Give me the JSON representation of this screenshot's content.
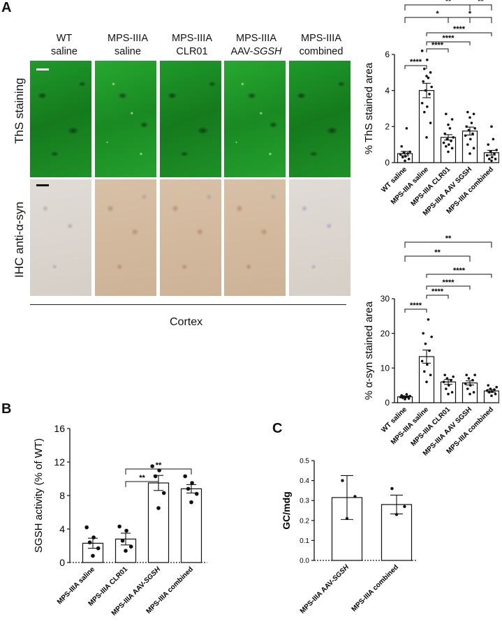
{
  "panel_a": {
    "letter": "A",
    "columns": [
      {
        "line1": "WT",
        "line2": "saline"
      },
      {
        "line1": "MPS-IIIA",
        "line2": "saline"
      },
      {
        "line1": "MPS-IIIA",
        "line2": "CLR01"
      },
      {
        "line1": "MPS-IIIA",
        "line2_prefix": "AAV-",
        "line2_italic": "SGSH"
      },
      {
        "line1": "MPS-IIIA",
        "line2": "combined"
      }
    ],
    "row_labels": [
      "ThS staining",
      "IHC anti-α-syn"
    ],
    "region_label": "Cortex"
  },
  "panel_b": {
    "letter": "B"
  },
  "panel_c": {
    "letter": "C"
  },
  "chart_data": [
    {
      "id": "ths",
      "type": "bar",
      "ylabel": "% ThS stained area",
      "ylim": [
        0,
        6
      ],
      "yticks": [
        0,
        2,
        4,
        6
      ],
      "categories": [
        "WT saline",
        "MPS-IIIA saline",
        "MPS-IIIA CLR01",
        "MPS-IIIA AAV SGSH",
        "MPS-IIIA combined"
      ],
      "values": [
        0.5,
        4.0,
        1.4,
        1.75,
        0.55
      ],
      "sem": [
        0.12,
        0.4,
        0.15,
        0.22,
        0.13
      ],
      "points": [
        [
          0.1,
          0.2,
          0.3,
          0.35,
          0.45,
          0.5,
          0.55,
          0.6,
          0.9,
          1.9
        ],
        [
          1.4,
          2.2,
          2.8,
          3.1,
          3.3,
          3.8,
          4.0,
          4.2,
          4.5,
          4.7,
          4.8,
          5.0,
          5.2,
          5.7,
          6.2
        ],
        [
          0.6,
          0.8,
          0.9,
          1.0,
          1.1,
          1.2,
          1.3,
          1.4,
          1.6,
          1.9,
          2.1,
          2.4,
          2.7
        ],
        [
          0.5,
          0.8,
          1.0,
          1.3,
          1.5,
          1.6,
          1.8,
          1.9,
          2.0,
          2.2,
          2.5,
          2.7,
          2.8
        ],
        [
          0.1,
          0.2,
          0.2,
          0.3,
          0.4,
          0.5,
          0.6,
          0.7,
          1.0,
          1.3,
          2.0
        ]
      ],
      "significance": [
        {
          "from": 0,
          "to": 1,
          "label": "****"
        },
        {
          "from": 1,
          "to": 2,
          "label": "****"
        },
        {
          "from": 1,
          "to": 3,
          "label": "****"
        },
        {
          "from": 1,
          "to": 4,
          "label": "****"
        },
        {
          "from": 0,
          "to": 3,
          "label": "*"
        },
        {
          "from": 2,
          "to": 4,
          "label": "*"
        },
        {
          "from": 0,
          "to": 4,
          "label": "**"
        },
        {
          "from": 3,
          "to": 4,
          "label": "**"
        }
      ]
    },
    {
      "id": "asyn",
      "type": "bar",
      "ylabel": "% α-syn stained area",
      "ylim": [
        0,
        30
      ],
      "yticks": [
        0,
        10,
        20,
        30
      ],
      "categories": [
        "WT saline",
        "MPS-IIIA saline",
        "MPS-IIIA CLR01",
        "MPS-IIIA AAV SGSH",
        "MPS-IIIA combined"
      ],
      "values": [
        1.7,
        13.3,
        6.0,
        5.7,
        3.4
      ],
      "sem": [
        0.2,
        1.9,
        0.7,
        0.6,
        0.4
      ],
      "points": [
        [
          1.0,
          1.2,
          1.4,
          1.5,
          1.6,
          1.7,
          1.8,
          1.9,
          2.1,
          2.4
        ],
        [
          6.0,
          8.0,
          9.0,
          11.0,
          12.0,
          15.0,
          17.0,
          19.0,
          20.0,
          24.0
        ],
        [
          2.5,
          3.0,
          4.0,
          5.0,
          6.0,
          6.5,
          7.0,
          7.5,
          8.0
        ],
        [
          2.5,
          3.0,
          4.0,
          5.0,
          5.5,
          6.5,
          7.0,
          8.0,
          8.0
        ],
        [
          2.0,
          2.5,
          3.0,
          3.2,
          3.5,
          3.8,
          4.0,
          4.5,
          5.0
        ]
      ],
      "significance": [
        {
          "from": 0,
          "to": 1,
          "label": "****"
        },
        {
          "from": 1,
          "to": 2,
          "label": "****"
        },
        {
          "from": 1,
          "to": 3,
          "label": "****"
        },
        {
          "from": 1,
          "to": 4,
          "label": "****"
        },
        {
          "from": 0,
          "to": 3,
          "label": "**"
        },
        {
          "from": 0,
          "to": 4,
          "label": "**"
        }
      ]
    },
    {
      "id": "sgsh",
      "type": "bar",
      "ylabel": "SGSH activity (% of WT)",
      "ylim": [
        0,
        16
      ],
      "yticks": [
        0,
        4,
        8,
        12,
        16
      ],
      "categories": [
        {
          "text": "MPS-IIIA saline"
        },
        {
          "text": "MPS-IIIA CLR01"
        },
        {
          "prefix": "MPS-IIIA AAV-",
          "italic": "SGSH"
        },
        {
          "text": "MPS-IIIA combined"
        }
      ],
      "values": [
        2.3,
        2.8,
        9.5,
        8.8
      ],
      "sem": [
        0.6,
        0.7,
        0.9,
        0.5
      ],
      "points": [
        [
          0.8,
          1.7,
          2.4,
          3.0,
          4.2
        ],
        [
          1.4,
          1.9,
          2.6,
          3.8,
          4.3
        ],
        [
          6.5,
          8.3,
          10.3,
          11.0,
          11.5
        ],
        [
          7.2,
          8.2,
          8.8,
          9.5,
          10.3
        ]
      ],
      "significance": [
        {
          "from": 1,
          "to": 2,
          "label": "**"
        },
        {
          "from": 1,
          "to": 3,
          "label": "**"
        }
      ]
    },
    {
      "id": "gc",
      "type": "bar",
      "ylabel": "GC/mdg",
      "ylim": [
        0,
        0.5
      ],
      "yticks": [
        0.0,
        0.1,
        0.2,
        0.3,
        0.4,
        0.5
      ],
      "categories": [
        {
          "prefix": "MPS-IIIA AAV-",
          "italic": "SGSH"
        },
        {
          "text": "MPS-IIIA combined"
        }
      ],
      "values": [
        0.315,
        0.28
      ],
      "sem": [
        0.11,
        0.047
      ],
      "points": [
        [
          0.21,
          0.32,
          0.4
        ],
        [
          0.23,
          0.27,
          0.36
        ]
      ],
      "significance": []
    }
  ]
}
